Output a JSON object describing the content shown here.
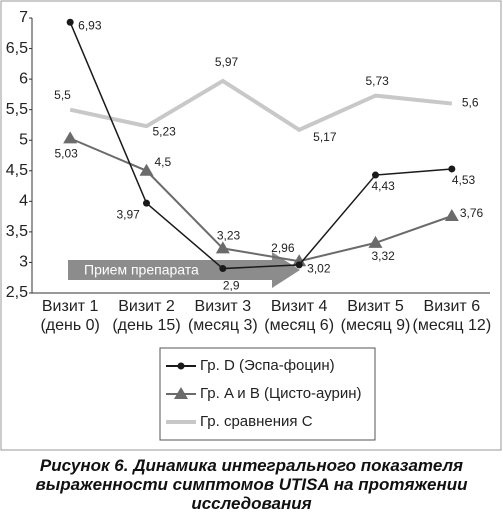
{
  "chart_data": {
    "type": "line",
    "categories": [
      [
        "Визит 1",
        "(день 0)"
      ],
      [
        "Визит 2",
        "(день 15)"
      ],
      [
        "Визит 3",
        "(месяц 3)"
      ],
      [
        "Визит 4",
        "(месяц 6)"
      ],
      [
        "Визит 5",
        "(месяц 9)"
      ],
      [
        "Визит 6",
        "(месяц 12)"
      ]
    ],
    "series": [
      {
        "name": "Гр. D (Эспа-фоцин)",
        "color": "#1a1a1a",
        "marker": "circle",
        "values": [
          6.93,
          3.97,
          2.9,
          2.96,
          4.43,
          4.53
        ],
        "value_labels": [
          "6,93",
          "3,97",
          "2,9",
          "2,96",
          "4,43",
          "4,53"
        ]
      },
      {
        "name": "Гр. A и B (Цисто-аурин)",
        "color": "#6b6b6b",
        "marker": "triangle",
        "values": [
          5.03,
          4.5,
          3.23,
          3.02,
          3.32,
          3.76
        ],
        "value_labels": [
          "5,03",
          "4,5",
          "3,23",
          "3,02",
          "3,32",
          "3,76"
        ]
      },
      {
        "name": "Гр. сравнения С",
        "color": "#c8c8c8",
        "marker": "none",
        "values": [
          5.5,
          5.23,
          5.97,
          5.17,
          5.73,
          5.6
        ],
        "value_labels": [
          "5,5",
          "5,23",
          "5,97",
          "5,17",
          "5,73",
          "5,6"
        ]
      }
    ],
    "ylim": [
      2.5,
      7
    ],
    "yticks": [
      {
        "value": 2.5,
        "label": "2,5"
      },
      3,
      {
        "value": 3.5,
        "label": "3,5"
      },
      4,
      {
        "value": 4.5,
        "label": "4,5"
      },
      5,
      {
        "value": 5.5,
        "label": "5,5"
      },
      6,
      {
        "value": 6.5,
        "label": "6,5"
      },
      7
    ],
    "annotation": "Прием препарата",
    "caption": "Рисунок 6. Динамика интегрального показателя выраженности симптомов UTISA на протяжении исследования"
  }
}
